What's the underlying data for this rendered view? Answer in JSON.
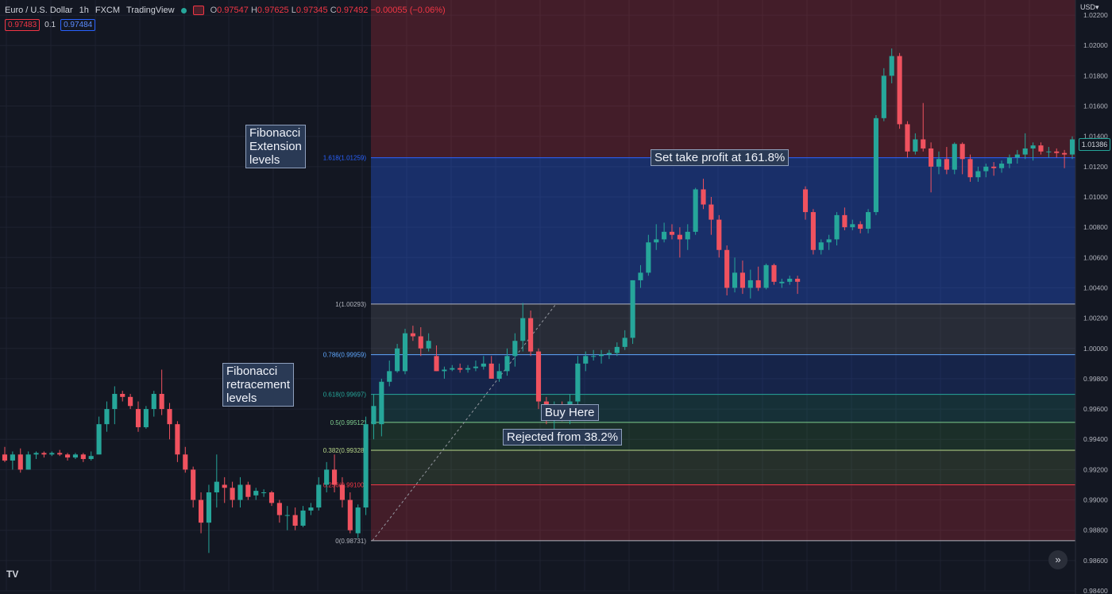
{
  "header": {
    "symbol": "Euro / U.S. Dollar",
    "timeframe": "1h",
    "exchange": "FXCM",
    "source": "TradingView",
    "o_label": "O",
    "o": "0.97547",
    "h_label": "H",
    "h": "0.97625",
    "l_label": "L",
    "l": "0.97345",
    "c_label": "C",
    "c": "0.97492",
    "change": "−0.00055 (−0.06%)"
  },
  "trade": {
    "sell": "0.97483",
    "spread": "0.1",
    "buy": "0.97484"
  },
  "currency": "USD",
  "current_price": "1.01386",
  "annotations": {
    "extension": "Fibonacci\nExtension\nlevels",
    "retracement": "Fibonacci\nretracement\nlevels",
    "take_profit": "Set take profit at 161.8%",
    "buy_here": "Buy Here",
    "rejected": "Rejected from 38.2%"
  },
  "logo": "TV",
  "scroll_icon": "double-chevron-right-icon",
  "colors": {
    "background": "#131722",
    "up": "#26a69a",
    "down": "#f0525f",
    "grid": "#1e2230"
  },
  "chart_data": {
    "type": "candlestick",
    "title": "Euro / U.S. Dollar 1h FXCM",
    "ylim": [
      0.984,
      1.023
    ],
    "y_ticks": [
      "1.02200",
      "1.02000",
      "1.01800",
      "1.01600",
      "1.01400",
      "1.01200",
      "1.01000",
      "1.00800",
      "1.00600",
      "1.00400",
      "1.00200",
      "1.00000",
      "0.99800",
      "0.99600",
      "0.99400",
      "0.99200",
      "0.99000",
      "0.98800",
      "0.98600",
      "0.98400"
    ],
    "fib_levels": [
      {
        "label": "0(0.98731)",
        "value": 0.98731,
        "color": "#b2b5be"
      },
      {
        "label": "0.236(0.99100)",
        "value": 0.991,
        "color": "#f23645"
      },
      {
        "label": "0.382(0.99328)",
        "value": 0.99328,
        "color": "#b9d88a"
      },
      {
        "label": "0.5(0.99512)",
        "value": 0.99512,
        "color": "#7fcf8f"
      },
      {
        "label": "0.618(0.99697)",
        "value": 0.99697,
        "color": "#26a69a"
      },
      {
        "label": "0.786(0.99959)",
        "value": 0.99959,
        "color": "#5fa8ff"
      },
      {
        "label": "1(1.00293)",
        "value": 1.00293,
        "color": "#b2b5be"
      },
      {
        "label": "1.618(1.01259)",
        "value": 1.01259,
        "color": "#2962ff"
      }
    ],
    "fib_zones": [
      {
        "from": 0.98731,
        "to": 0.991,
        "color": "#f23645",
        "opacity": 0.22
      },
      {
        "from": 0.991,
        "to": 0.99328,
        "color": "#9ccc65",
        "opacity": 0.14
      },
      {
        "from": 0.99328,
        "to": 0.99512,
        "color": "#4caf50",
        "opacity": 0.16
      },
      {
        "from": 0.99512,
        "to": 0.99697,
        "color": "#26a69a",
        "opacity": 0.18
      },
      {
        "from": 0.99697,
        "to": 0.99959,
        "color": "#2962ff",
        "opacity": 0.18
      },
      {
        "from": 0.99959,
        "to": 1.00293,
        "color": "#787b86",
        "opacity": 0.22
      },
      {
        "from": 1.00293,
        "to": 1.01259,
        "color": "#2962ff",
        "opacity": 0.32
      },
      {
        "from": 1.01259,
        "to": 1.023,
        "color": "#f23645",
        "opacity": 0.22
      }
    ],
    "candles": [
      [
        0.993,
        0.9935,
        0.9925,
        0.9926
      ],
      [
        0.9926,
        0.9932,
        0.992,
        0.993
      ],
      [
        0.993,
        0.9934,
        0.9918,
        0.992
      ],
      [
        0.992,
        0.9932,
        0.992,
        0.993
      ],
      [
        0.993,
        0.9932,
        0.9927,
        0.9931
      ],
      [
        0.9931,
        0.9932,
        0.9928,
        0.993
      ],
      [
        0.993,
        0.9932,
        0.9929,
        0.9931
      ],
      [
        0.9931,
        0.9933,
        0.9929,
        0.993
      ],
      [
        0.993,
        0.9931,
        0.9926,
        0.9928
      ],
      [
        0.9928,
        0.9931,
        0.9927,
        0.993
      ],
      [
        0.993,
        0.9931,
        0.9925,
        0.9927
      ],
      [
        0.9927,
        0.9932,
        0.9926,
        0.9929
      ],
      [
        0.993,
        0.9955,
        0.993,
        0.995
      ],
      [
        0.995,
        0.9965,
        0.9945,
        0.996
      ],
      [
        0.996,
        0.9975,
        0.995,
        0.997
      ],
      [
        0.997,
        0.9972,
        0.9965,
        0.9968
      ],
      [
        0.9968,
        0.997,
        0.996,
        0.9962
      ],
      [
        0.996,
        0.9965,
        0.9945,
        0.9948
      ],
      [
        0.9948,
        0.9962,
        0.9947,
        0.996
      ],
      [
        0.996,
        0.9972,
        0.9955,
        0.997
      ],
      [
        0.997,
        0.9986,
        0.9956,
        0.996
      ],
      [
        0.996,
        0.9964,
        0.994,
        0.995
      ],
      [
        0.995,
        0.9952,
        0.9925,
        0.993
      ],
      [
        0.993,
        0.9935,
        0.9918,
        0.992
      ],
      [
        0.992,
        0.9922,
        0.9895,
        0.99
      ],
      [
        0.99,
        0.9905,
        0.9878,
        0.9885
      ],
      [
        0.9885,
        0.991,
        0.9865,
        0.9905
      ],
      [
        0.9905,
        0.993,
        0.9895,
        0.9912
      ],
      [
        0.991,
        0.9915,
        0.9898,
        0.9908
      ],
      [
        0.9908,
        0.9912,
        0.9895,
        0.99
      ],
      [
        0.99,
        0.9915,
        0.9895,
        0.991
      ],
      [
        0.991,
        0.9912,
        0.99,
        0.9902
      ],
      [
        0.9903,
        0.9908,
        0.99,
        0.9906
      ],
      [
        0.9905,
        0.9907,
        0.9902,
        0.9905
      ],
      [
        0.9905,
        0.9906,
        0.9896,
        0.9898
      ],
      [
        0.9898,
        0.99,
        0.9885,
        0.989
      ],
      [
        0.989,
        0.9896,
        0.988,
        0.989
      ],
      [
        0.989,
        0.9895,
        0.988,
        0.9883
      ],
      [
        0.9883,
        0.9896,
        0.9882,
        0.9893
      ],
      [
        0.9893,
        0.9898,
        0.989,
        0.9895
      ],
      [
        0.9895,
        0.9915,
        0.9893,
        0.991
      ],
      [
        0.991,
        0.9925,
        0.9905,
        0.992
      ],
      [
        0.992,
        0.993,
        0.9905,
        0.991
      ],
      [
        0.991,
        0.9915,
        0.9895,
        0.99
      ],
      [
        0.99,
        0.9905,
        0.9878,
        0.988
      ],
      [
        0.9878,
        0.9897,
        0.9875,
        0.9895
      ],
      [
        0.9895,
        0.9955,
        0.989,
        0.995
      ],
      [
        0.995,
        0.997,
        0.994,
        0.9962
      ],
      [
        0.995,
        0.998,
        0.9942,
        0.9978
      ],
      [
        0.9978,
        0.9992,
        0.9975,
        0.9985
      ],
      [
        0.9985,
        1.0003,
        0.9984,
        1.0
      ],
      [
        0.9985,
        1.0013,
        0.9983,
        1.001
      ],
      [
        1.001,
        1.0015,
        1.0005,
        1.0008
      ],
      [
        1.0008,
        1.0014,
        0.9995,
        1.0
      ],
      [
        1.0,
        1.001,
        0.9998,
        1.0005
      ],
      [
        0.9995,
        1.0002,
        0.9985,
        0.9985
      ],
      [
        0.9985,
        0.9988,
        0.998,
        0.9986
      ],
      [
        0.9986,
        0.9989,
        0.9985,
        0.9987
      ],
      [
        0.9987,
        0.999,
        0.9984,
        0.9986
      ],
      [
        0.9986,
        0.9989,
        0.9984,
        0.9987
      ],
      [
        0.9987,
        0.9992,
        0.9985,
        0.9988
      ],
      [
        0.9988,
        0.9995,
        0.9986,
        0.999
      ],
      [
        0.999,
        0.9995,
        0.998,
        0.998
      ],
      [
        0.998,
        0.999,
        0.9978,
        0.9985
      ],
      [
        0.9985,
        1.0,
        0.9982,
        0.9995
      ],
      [
        0.9995,
        1.001,
        0.9988,
        1.0005
      ],
      [
        1.0005,
        1.003,
        0.9998,
        1.002
      ],
      [
        1.002,
        1.0025,
        0.9995,
        0.9998
      ],
      [
        0.9998,
        1.0,
        0.996,
        0.9965
      ],
      [
        0.9965,
        0.9968,
        0.995,
        0.9955
      ],
      [
        0.9955,
        0.9965,
        0.9942,
        0.996
      ],
      [
        0.996,
        0.9965,
        0.9952,
        0.9955
      ],
      [
        0.9955,
        0.997,
        0.995,
        0.9965
      ],
      [
        0.9965,
        0.9995,
        0.9962,
        0.999
      ],
      [
        0.999,
        0.9998,
        0.9985,
        0.9995
      ],
      [
        0.9995,
        0.9999,
        0.9992,
        0.9995
      ],
      [
        0.9995,
        0.9999,
        0.999,
        0.9996
      ],
      [
        0.9996,
        0.9999,
        0.9993,
        0.9997
      ],
      [
        0.9997,
        1.0004,
        0.9995,
        1.0001
      ],
      [
        1.0001,
        1.0012,
        0.9999,
        1.0007
      ],
      [
        1.0007,
        1.0045,
        1.0003,
        1.0045
      ],
      [
        1.0045,
        1.0055,
        1.004,
        1.005
      ],
      [
        1.005,
        1.0075,
        1.0048,
        1.007
      ],
      [
        1.007,
        1.0082,
        1.0065,
        1.0072
      ],
      [
        1.0072,
        1.0083,
        1.007,
        1.0077
      ],
      [
        1.0077,
        1.0082,
        1.0072,
        1.0075
      ],
      [
        1.0075,
        1.008,
        1.006,
        1.0072
      ],
      [
        1.0072,
        1.0082,
        1.0065,
        1.0077
      ],
      [
        1.0077,
        1.0106,
        1.0075,
        1.0105
      ],
      [
        1.0105,
        1.0112,
        1.0092,
        1.0095
      ],
      [
        1.0095,
        1.01,
        1.0075,
        1.0085
      ],
      [
        1.0085,
        1.0088,
        1.006,
        1.0065
      ],
      [
        1.0065,
        1.0068,
        1.0035,
        1.004
      ],
      [
        1.004,
        1.006,
        1.0037,
        1.005
      ],
      [
        1.005,
        1.0058,
        1.0036,
        1.004
      ],
      [
        1.004,
        1.0052,
        1.0033,
        1.0045
      ],
      [
        1.0045,
        1.0054,
        1.0038,
        1.004
      ],
      [
        1.004,
        1.0056,
        1.0039,
        1.0055
      ],
      [
        1.0055,
        1.0056,
        1.0042,
        1.0044
      ],
      [
        1.0043,
        1.0046,
        1.004,
        1.0044
      ],
      [
        1.0044,
        1.0048,
        1.0042,
        1.0046
      ],
      [
        1.0046,
        1.0048,
        1.0036,
        1.0044
      ],
      [
        1.0105,
        1.0107,
        1.0085,
        1.009
      ],
      [
        1.009,
        1.0092,
        1.0062,
        1.0065
      ],
      [
        1.0065,
        1.0072,
        1.0062,
        1.007
      ],
      [
        1.007,
        1.0075,
        1.0065,
        1.0072
      ],
      [
        1.0072,
        1.009,
        1.0068,
        1.0088
      ],
      [
        1.0088,
        1.0093,
        1.0078,
        1.008
      ],
      [
        1.008,
        1.0085,
        1.0078,
        1.0082
      ],
      [
        1.0082,
        1.0084,
        1.0076,
        1.0079
      ],
      [
        1.0079,
        1.0092,
        1.0076,
        1.009
      ],
      [
        1.009,
        1.0154,
        1.0088,
        1.0152
      ],
      [
        1.0152,
        1.0185,
        1.015,
        1.018
      ],
      [
        1.018,
        1.0198,
        1.0175,
        1.0193
      ],
      [
        1.0193,
        1.0195,
        1.0145,
        1.0148
      ],
      [
        1.0148,
        1.015,
        1.0126,
        1.013
      ],
      [
        1.013,
        1.0142,
        1.0128,
        1.0138
      ],
      [
        1.0138,
        1.0162,
        1.013,
        1.0132
      ],
      [
        1.0132,
        1.0136,
        1.0103,
        1.012
      ],
      [
        1.012,
        1.013,
        1.0115,
        1.0125
      ],
      [
        1.0125,
        1.0133,
        1.0115,
        1.0118
      ],
      [
        1.0118,
        1.0136,
        1.0115,
        1.0135
      ],
      [
        1.0135,
        1.0136,
        1.0115,
        1.0125
      ],
      [
        1.0125,
        1.0128,
        1.011,
        1.0113
      ],
      [
        1.0113,
        1.012,
        1.011,
        1.0117
      ],
      [
        1.0117,
        1.0122,
        1.0113,
        1.012
      ],
      [
        1.012,
        1.0123,
        1.0114,
        1.0119
      ],
      [
        1.0119,
        1.0124,
        1.0116,
        1.0122
      ],
      [
        1.0122,
        1.0128,
        1.0119,
        1.0126
      ],
      [
        1.0126,
        1.0131,
        1.0122,
        1.0128
      ],
      [
        1.0128,
        1.0142,
        1.0125,
        1.0132
      ],
      [
        1.0132,
        1.0136,
        1.0124,
        1.0134
      ],
      [
        1.0134,
        1.0136,
        1.0128,
        1.013
      ],
      [
        1.013,
        1.0133,
        1.0126,
        1.013
      ],
      [
        1.013,
        1.0132,
        1.0126,
        1.0129
      ],
      [
        1.0129,
        1.0131,
        1.0119,
        1.0128
      ],
      [
        1.0128,
        1.014,
        1.0125,
        1.0138
      ]
    ]
  }
}
